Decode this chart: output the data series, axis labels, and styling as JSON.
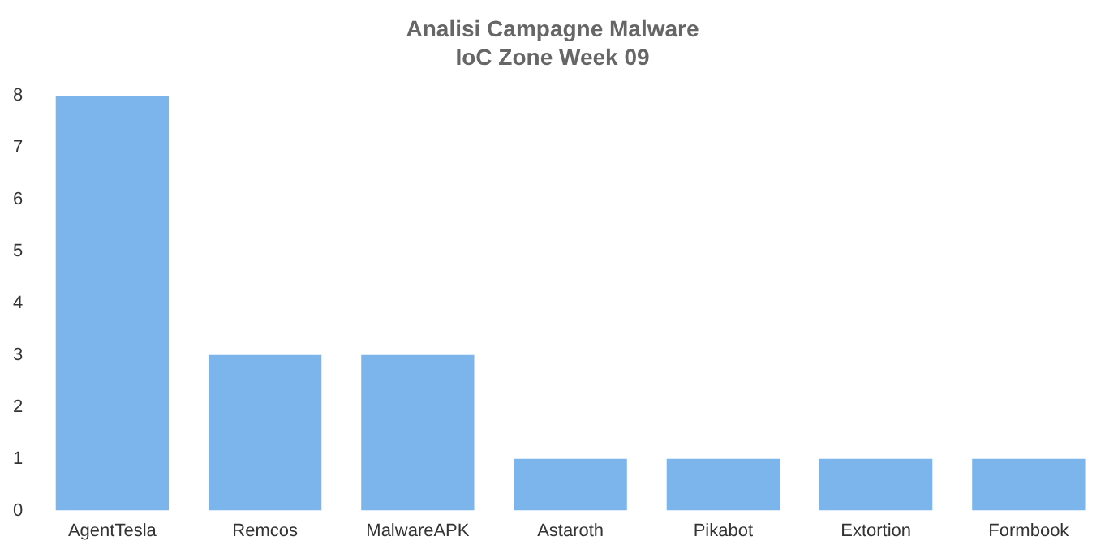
{
  "chart_data": {
    "type": "bar",
    "title": "Analisi Campagne Malware",
    "subtitle": "IoC Zone Week 09",
    "categories": [
      "AgentTesla",
      "Remcos",
      "MalwareAPK",
      "Astaroth",
      "Pikabot",
      "Extortion",
      "Formbook"
    ],
    "values": [
      8,
      3,
      3,
      1,
      1,
      1,
      1
    ],
    "color": "#7cb5ec",
    "ylim": [
      0,
      8
    ],
    "yticks": [
      0,
      1,
      2,
      3,
      4,
      5,
      6,
      7,
      8
    ],
    "grid": false,
    "legend": false
  }
}
